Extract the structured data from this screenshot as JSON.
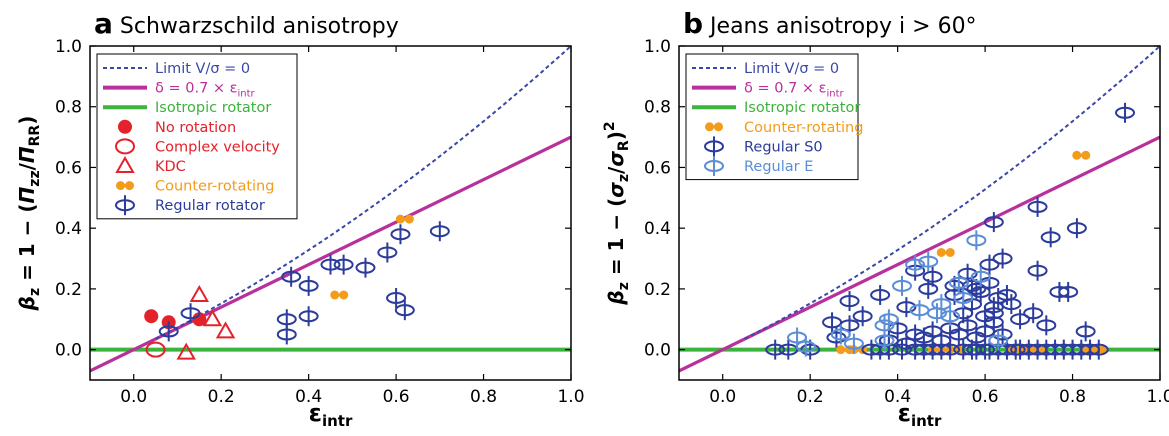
{
  "colors": {
    "limit": "#3a48a8",
    "delta": "#b7309b",
    "iso": "#3cb33c",
    "red": "#e3222b",
    "orange": "#f39c1c",
    "s0": "#2c3c9c",
    "e": "#5b8ed6"
  },
  "chart_data": [
    {
      "type": "scatter",
      "panel_letter": "a",
      "title": "Schwarzschild anisotropy",
      "xlabel": "ε",
      "xlabel_sub": "intr",
      "ylabel_parts": [
        "β",
        "z",
        " = 1 − (",
        "Π",
        "zz",
        "/",
        "Π",
        "RR",
        ")"
      ],
      "xlim": [
        -0.1,
        1.0
      ],
      "ylim": [
        -0.1,
        1.0
      ],
      "xticks": [
        "0.0",
        "0.2",
        "0.4",
        "0.6",
        "0.8",
        "1.0"
      ],
      "xtick_values": [
        0.0,
        0.2,
        0.4,
        0.6,
        0.8,
        1.0
      ],
      "yticks": [
        "0.0",
        "0.2",
        "0.4",
        "0.6",
        "0.8",
        "1.0"
      ],
      "ytick_values": [
        0.0,
        0.2,
        0.4,
        0.6,
        0.8,
        1.0
      ],
      "legend": [
        {
          "kind": "dashed",
          "color": "limit",
          "text": "Limit V/σ = 0",
          "label_color": "limit"
        },
        {
          "kind": "line",
          "color": "delta",
          "text": "δ = 0.7 × ε",
          "sub": "intr",
          "label_color": "delta"
        },
        {
          "kind": "line",
          "color": "iso",
          "text": "Isotropic rotator",
          "label_color": "iso"
        },
        {
          "kind": "filled-circle",
          "color": "red",
          "text": "No rotation",
          "label_color": "red"
        },
        {
          "kind": "open-ellipse",
          "color": "red",
          "text": "Complex velocity",
          "label_color": "red"
        },
        {
          "kind": "triangle",
          "color": "red",
          "text": "KDC",
          "label_color": "red"
        },
        {
          "kind": "counter",
          "color": "orange",
          "text": "Counter-rotating",
          "label_color": "orange"
        },
        {
          "kind": "regular",
          "color": "s0",
          "text": "Regular rotator",
          "label_color": "s0"
        }
      ],
      "series": [
        {
          "name": "No rotation",
          "marker": "filled-circle",
          "color": "red",
          "x": [
            0.04,
            0.08,
            0.15
          ],
          "y": [
            0.11,
            0.09,
            0.1
          ]
        },
        {
          "name": "Complex velocity",
          "marker": "open-ellipse",
          "color": "red",
          "x": [
            0.05
          ],
          "y": [
            0.0
          ]
        },
        {
          "name": "KDC",
          "marker": "triangle",
          "color": "red",
          "x": [
            0.12,
            0.15,
            0.18,
            0.21
          ],
          "y": [
            -0.01,
            0.18,
            0.1,
            0.06
          ]
        },
        {
          "name": "Counter-rotating",
          "marker": "counter",
          "color": "orange",
          "x": [
            0.47,
            0.62
          ],
          "y": [
            0.18,
            0.43
          ]
        },
        {
          "name": "Regular rotator",
          "marker": "regular",
          "color": "s0",
          "x": [
            0.08,
            0.13,
            0.35,
            0.35,
            0.36,
            0.4,
            0.4,
            0.45,
            0.48,
            0.53,
            0.58,
            0.6,
            0.61,
            0.62,
            0.7
          ],
          "y": [
            0.06,
            0.12,
            0.1,
            0.05,
            0.24,
            0.11,
            0.21,
            0.28,
            0.28,
            0.27,
            0.32,
            0.17,
            0.38,
            0.13,
            0.39
          ]
        }
      ]
    },
    {
      "type": "scatter",
      "panel_letter": "b",
      "title": "Jeans anisotropy i > 60°",
      "xlabel": "ε",
      "xlabel_sub": "intr",
      "ylabel_parts": [
        "β",
        "z",
        " = 1 − (",
        "σ",
        "z",
        "/",
        "σ",
        "R",
        ")",
        "2"
      ],
      "xlim": [
        -0.1,
        1.0
      ],
      "ylim": [
        -0.1,
        1.0
      ],
      "xticks": [
        "0.0",
        "0.2",
        "0.4",
        "0.6",
        "0.8",
        "1.0"
      ],
      "xtick_values": [
        0.0,
        0.2,
        0.4,
        0.6,
        0.8,
        1.0
      ],
      "yticks": [
        "0.0",
        "0.2",
        "0.4",
        "0.6",
        "0.8",
        "1.0"
      ],
      "ytick_values": [
        0.0,
        0.2,
        0.4,
        0.6,
        0.8,
        1.0
      ],
      "legend": [
        {
          "kind": "dashed",
          "color": "limit",
          "text": "Limit V/σ = 0",
          "label_color": "limit"
        },
        {
          "kind": "line",
          "color": "delta",
          "text": "δ = 0.7 × ε",
          "sub": "intr",
          "label_color": "delta"
        },
        {
          "kind": "line",
          "color": "iso",
          "text": "Isotropic rotator",
          "label_color": "iso"
        },
        {
          "kind": "counter",
          "color": "orange",
          "text": "Counter-rotating",
          "label_color": "orange"
        },
        {
          "kind": "regular",
          "color": "s0",
          "text": "Regular S0",
          "label_color": "s0"
        },
        {
          "kind": "regular",
          "color": "e",
          "text": "Regular E",
          "label_color": "e"
        }
      ],
      "series": [
        {
          "name": "Counter-rotating",
          "marker": "counter",
          "color": "orange",
          "x": [
            0.28,
            0.31,
            0.49,
            0.51,
            0.53,
            0.67,
            0.7,
            0.72,
            0.82,
            0.84,
            0.86
          ],
          "y": [
            0.0,
            0.0,
            0.0,
            0.32,
            0.0,
            0.0,
            0.0,
            0.0,
            0.64,
            0.0,
            0.0
          ]
        },
        {
          "name": "Regular S0",
          "marker": "regular",
          "color": "s0",
          "x": [
            0.12,
            0.15,
            0.2,
            0.25,
            0.29,
            0.34,
            0.36,
            0.38,
            0.41,
            0.44,
            0.46,
            0.48,
            0.5,
            0.52,
            0.55,
            0.57,
            0.58,
            0.6,
            0.61,
            0.63,
            0.65,
            0.67,
            0.68,
            0.7,
            0.72,
            0.74,
            0.76,
            0.78,
            0.8,
            0.82,
            0.84,
            0.86,
            0.38,
            0.4,
            0.42,
            0.44,
            0.46,
            0.48,
            0.5,
            0.52,
            0.54,
            0.56,
            0.58,
            0.6,
            0.62,
            0.64,
            0.55,
            0.57,
            0.59,
            0.61,
            0.63,
            0.53,
            0.56,
            0.6,
            0.62,
            0.65,
            0.58,
            0.61,
            0.64,
            0.44,
            0.48,
            0.53,
            0.57,
            0.62,
            0.66,
            0.68,
            0.71,
            0.74,
            0.72,
            0.75,
            0.77,
            0.79,
            0.81,
            0.83,
            0.92,
            0.72,
            0.62,
            0.26,
            0.29,
            0.32,
            0.42,
            0.47,
            0.36
          ],
          "y": [
            0.0,
            0.0,
            0.0,
            0.09,
            0.08,
            0.0,
            0.0,
            0.0,
            0.0,
            0.0,
            0.0,
            0.0,
            0.0,
            0.0,
            0.0,
            0.0,
            0.0,
            0.0,
            0.0,
            0.0,
            0.0,
            0.0,
            0.0,
            0.0,
            0.0,
            0.0,
            0.0,
            0.0,
            0.0,
            0.0,
            0.0,
            0.0,
            0.03,
            0.07,
            0.02,
            0.05,
            0.04,
            0.06,
            0.03,
            0.07,
            0.05,
            0.08,
            0.04,
            0.06,
            0.09,
            0.05,
            0.12,
            0.15,
            0.19,
            0.22,
            0.17,
            0.21,
            0.25,
            0.11,
            0.14,
            0.18,
            0.2,
            0.28,
            0.3,
            0.26,
            0.24,
            0.18,
            0.21,
            0.42,
            0.15,
            0.1,
            0.12,
            0.08,
            0.47,
            0.37,
            0.19,
            0.19,
            0.4,
            0.06,
            0.78,
            0.26,
            0.12,
            0.04,
            0.16,
            0.11,
            0.14,
            0.2,
            0.18
          ]
        },
        {
          "name": "Regular E",
          "marker": "regular",
          "color": "e",
          "x": [
            0.17,
            0.19,
            0.27,
            0.3,
            0.37,
            0.38,
            0.41,
            0.45,
            0.47,
            0.5,
            0.52,
            0.55,
            0.58,
            0.59,
            0.63,
            0.37,
            0.44,
            0.49,
            0.54
          ],
          "y": [
            0.04,
            0.01,
            0.05,
            0.02,
            0.03,
            0.1,
            0.21,
            0.13,
            0.29,
            0.15,
            0.11,
            0.17,
            0.36,
            0.24,
            0.03,
            0.08,
            0.28,
            0.12,
            0.22
          ]
        }
      ]
    }
  ]
}
